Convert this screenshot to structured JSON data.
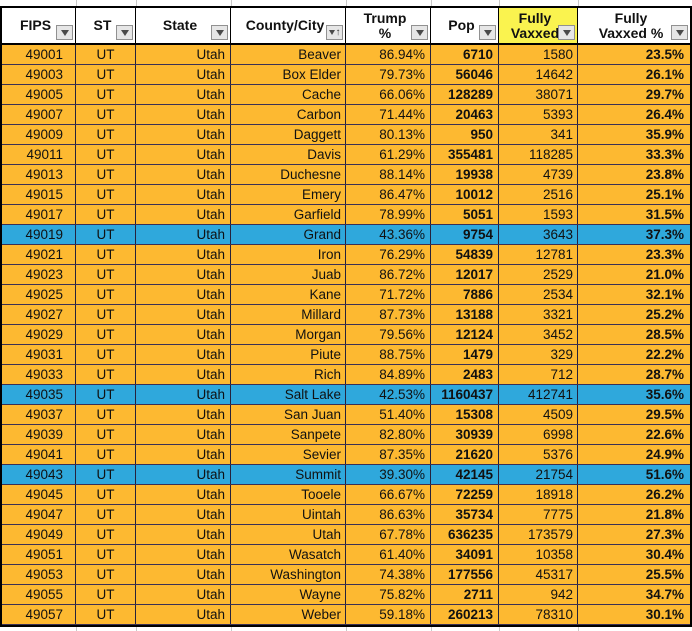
{
  "app": {
    "type": "spreadsheet-filtered-table"
  },
  "colors": {
    "row_orange": "#FDB931",
    "row_blue": "#2FA8DC",
    "header_yellow": "#FAF34F",
    "row_border": "#3A3054",
    "table_border": "#000000",
    "gridline": "#C9C9C9",
    "filter_button_bg": "#E6E6E6"
  },
  "header": {
    "columns": [
      {
        "id": "fips",
        "lines": [
          "FIPS"
        ],
        "filter_icon": "dropdown-arrow-icon"
      },
      {
        "id": "st",
        "lines": [
          "ST"
        ],
        "filter_icon": "dropdown-arrow-icon"
      },
      {
        "id": "state",
        "lines": [
          "State"
        ],
        "filter_icon": "dropdown-arrow-icon"
      },
      {
        "id": "county",
        "lines": [
          "County/City"
        ],
        "filter_icon": "dropdown-arrow-sorted-asc-icon",
        "sorted": "ascending"
      },
      {
        "id": "trump_pct",
        "lines": [
          "Trump",
          "%"
        ],
        "filter_icon": "dropdown-arrow-icon"
      },
      {
        "id": "pop",
        "lines": [
          "Pop"
        ],
        "filter_icon": "dropdown-arrow-icon"
      },
      {
        "id": "fully_vaxxed",
        "lines": [
          "Fully",
          "Vaxxed"
        ],
        "filter_icon": "dropdown-arrow-icon",
        "highlight": "yellow"
      },
      {
        "id": "fully_vaxxed_pct",
        "lines": [
          "Fully",
          "Vaxxed %"
        ],
        "filter_icon": "dropdown-arrow-icon"
      }
    ]
  },
  "rows": [
    {
      "fips": "49001",
      "st": "UT",
      "state": "Utah",
      "county": "Beaver",
      "trump_pct": "86.94%",
      "pop": "6710",
      "fully_vaxxed": "1580",
      "fully_vaxxed_pct": "23.5%",
      "highlight": "orange"
    },
    {
      "fips": "49003",
      "st": "UT",
      "state": "Utah",
      "county": "Box Elder",
      "trump_pct": "79.73%",
      "pop": "56046",
      "fully_vaxxed": "14642",
      "fully_vaxxed_pct": "26.1%",
      "highlight": "orange"
    },
    {
      "fips": "49005",
      "st": "UT",
      "state": "Utah",
      "county": "Cache",
      "trump_pct": "66.06%",
      "pop": "128289",
      "fully_vaxxed": "38071",
      "fully_vaxxed_pct": "29.7%",
      "highlight": "orange"
    },
    {
      "fips": "49007",
      "st": "UT",
      "state": "Utah",
      "county": "Carbon",
      "trump_pct": "71.44%",
      "pop": "20463",
      "fully_vaxxed": "5393",
      "fully_vaxxed_pct": "26.4%",
      "highlight": "orange"
    },
    {
      "fips": "49009",
      "st": "UT",
      "state": "Utah",
      "county": "Daggett",
      "trump_pct": "80.13%",
      "pop": "950",
      "fully_vaxxed": "341",
      "fully_vaxxed_pct": "35.9%",
      "highlight": "orange"
    },
    {
      "fips": "49011",
      "st": "UT",
      "state": "Utah",
      "county": "Davis",
      "trump_pct": "61.29%",
      "pop": "355481",
      "fully_vaxxed": "118285",
      "fully_vaxxed_pct": "33.3%",
      "highlight": "orange"
    },
    {
      "fips": "49013",
      "st": "UT",
      "state": "Utah",
      "county": "Duchesne",
      "trump_pct": "88.14%",
      "pop": "19938",
      "fully_vaxxed": "4739",
      "fully_vaxxed_pct": "23.8%",
      "highlight": "orange"
    },
    {
      "fips": "49015",
      "st": "UT",
      "state": "Utah",
      "county": "Emery",
      "trump_pct": "86.47%",
      "pop": "10012",
      "fully_vaxxed": "2516",
      "fully_vaxxed_pct": "25.1%",
      "highlight": "orange"
    },
    {
      "fips": "49017",
      "st": "UT",
      "state": "Utah",
      "county": "Garfield",
      "trump_pct": "78.99%",
      "pop": "5051",
      "fully_vaxxed": "1593",
      "fully_vaxxed_pct": "31.5%",
      "highlight": "orange"
    },
    {
      "fips": "49019",
      "st": "UT",
      "state": "Utah",
      "county": "Grand",
      "trump_pct": "43.36%",
      "pop": "9754",
      "fully_vaxxed": "3643",
      "fully_vaxxed_pct": "37.3%",
      "highlight": "blue"
    },
    {
      "fips": "49021",
      "st": "UT",
      "state": "Utah",
      "county": "Iron",
      "trump_pct": "76.29%",
      "pop": "54839",
      "fully_vaxxed": "12781",
      "fully_vaxxed_pct": "23.3%",
      "highlight": "orange"
    },
    {
      "fips": "49023",
      "st": "UT",
      "state": "Utah",
      "county": "Juab",
      "trump_pct": "86.72%",
      "pop": "12017",
      "fully_vaxxed": "2529",
      "fully_vaxxed_pct": "21.0%",
      "highlight": "orange"
    },
    {
      "fips": "49025",
      "st": "UT",
      "state": "Utah",
      "county": "Kane",
      "trump_pct": "71.72%",
      "pop": "7886",
      "fully_vaxxed": "2534",
      "fully_vaxxed_pct": "32.1%",
      "highlight": "orange"
    },
    {
      "fips": "49027",
      "st": "UT",
      "state": "Utah",
      "county": "Millard",
      "trump_pct": "87.73%",
      "pop": "13188",
      "fully_vaxxed": "3321",
      "fully_vaxxed_pct": "25.2%",
      "highlight": "orange"
    },
    {
      "fips": "49029",
      "st": "UT",
      "state": "Utah",
      "county": "Morgan",
      "trump_pct": "79.56%",
      "pop": "12124",
      "fully_vaxxed": "3452",
      "fully_vaxxed_pct": "28.5%",
      "highlight": "orange"
    },
    {
      "fips": "49031",
      "st": "UT",
      "state": "Utah",
      "county": "Piute",
      "trump_pct": "88.75%",
      "pop": "1479",
      "fully_vaxxed": "329",
      "fully_vaxxed_pct": "22.2%",
      "highlight": "orange"
    },
    {
      "fips": "49033",
      "st": "UT",
      "state": "Utah",
      "county": "Rich",
      "trump_pct": "84.89%",
      "pop": "2483",
      "fully_vaxxed": "712",
      "fully_vaxxed_pct": "28.7%",
      "highlight": "orange"
    },
    {
      "fips": "49035",
      "st": "UT",
      "state": "Utah",
      "county": "Salt Lake",
      "trump_pct": "42.53%",
      "pop": "1160437",
      "fully_vaxxed": "412741",
      "fully_vaxxed_pct": "35.6%",
      "highlight": "blue"
    },
    {
      "fips": "49037",
      "st": "UT",
      "state": "Utah",
      "county": "San Juan",
      "trump_pct": "51.40%",
      "pop": "15308",
      "fully_vaxxed": "4509",
      "fully_vaxxed_pct": "29.5%",
      "highlight": "orange"
    },
    {
      "fips": "49039",
      "st": "UT",
      "state": "Utah",
      "county": "Sanpete",
      "trump_pct": "82.80%",
      "pop": "30939",
      "fully_vaxxed": "6998",
      "fully_vaxxed_pct": "22.6%",
      "highlight": "orange"
    },
    {
      "fips": "49041",
      "st": "UT",
      "state": "Utah",
      "county": "Sevier",
      "trump_pct": "87.35%",
      "pop": "21620",
      "fully_vaxxed": "5376",
      "fully_vaxxed_pct": "24.9%",
      "highlight": "orange"
    },
    {
      "fips": "49043",
      "st": "UT",
      "state": "Utah",
      "county": "Summit",
      "trump_pct": "39.30%",
      "pop": "42145",
      "fully_vaxxed": "21754",
      "fully_vaxxed_pct": "51.6%",
      "highlight": "blue"
    },
    {
      "fips": "49045",
      "st": "UT",
      "state": "Utah",
      "county": "Tooele",
      "trump_pct": "66.67%",
      "pop": "72259",
      "fully_vaxxed": "18918",
      "fully_vaxxed_pct": "26.2%",
      "highlight": "orange"
    },
    {
      "fips": "49047",
      "st": "UT",
      "state": "Utah",
      "county": "Uintah",
      "trump_pct": "86.63%",
      "pop": "35734",
      "fully_vaxxed": "7775",
      "fully_vaxxed_pct": "21.8%",
      "highlight": "orange"
    },
    {
      "fips": "49049",
      "st": "UT",
      "state": "Utah",
      "county": "Utah",
      "trump_pct": "67.78%",
      "pop": "636235",
      "fully_vaxxed": "173579",
      "fully_vaxxed_pct": "27.3%",
      "highlight": "orange"
    },
    {
      "fips": "49051",
      "st": "UT",
      "state": "Utah",
      "county": "Wasatch",
      "trump_pct": "61.40%",
      "pop": "34091",
      "fully_vaxxed": "10358",
      "fully_vaxxed_pct": "30.4%",
      "highlight": "orange"
    },
    {
      "fips": "49053",
      "st": "UT",
      "state": "Utah",
      "county": "Washington",
      "trump_pct": "74.38%",
      "pop": "177556",
      "fully_vaxxed": "45317",
      "fully_vaxxed_pct": "25.5%",
      "highlight": "orange"
    },
    {
      "fips": "49055",
      "st": "UT",
      "state": "Utah",
      "county": "Wayne",
      "trump_pct": "75.82%",
      "pop": "2711",
      "fully_vaxxed": "942",
      "fully_vaxxed_pct": "34.7%",
      "highlight": "orange"
    },
    {
      "fips": "49057",
      "st": "UT",
      "state": "Utah",
      "county": "Weber",
      "trump_pct": "59.18%",
      "pop": "260213",
      "fully_vaxxed": "78310",
      "fully_vaxxed_pct": "30.1%",
      "highlight": "orange"
    }
  ]
}
